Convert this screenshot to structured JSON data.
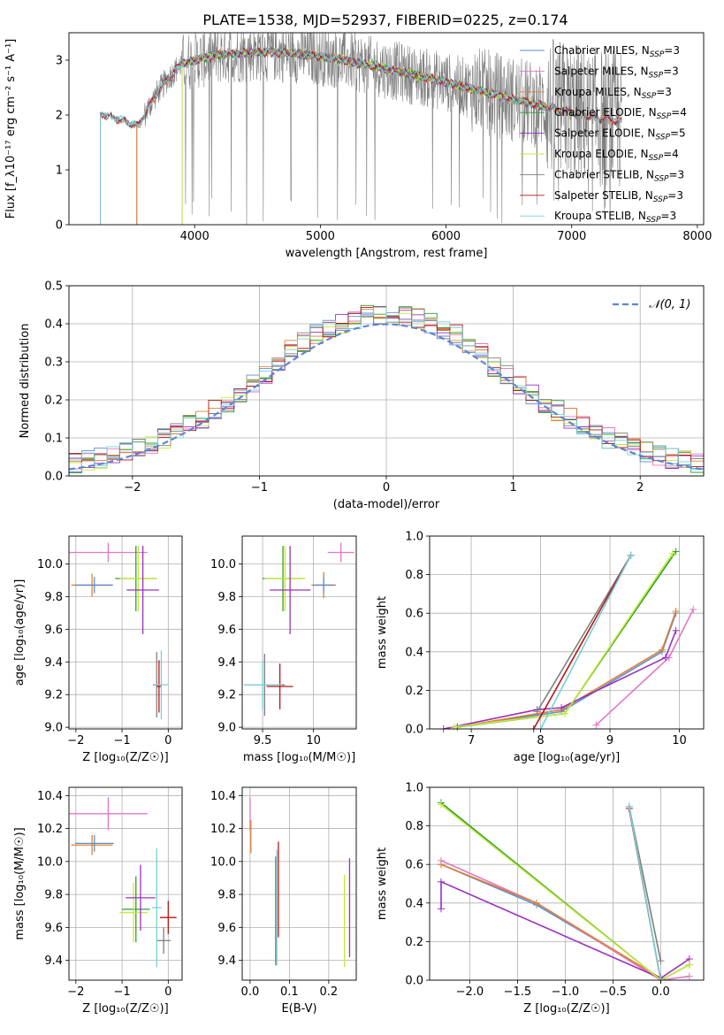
{
  "title": "PLATE=1538, MJD=52937, FIBERID=0225, z=0.174",
  "colors": {
    "Chabrier MILES": "#5a8fd6",
    "Salpeter MILES": "#e377c2",
    "Kroupa MILES": "#dd8033",
    "Chabrier ELODIE": "#2ca02c",
    "Salpeter ELODIE": "#9b30c0",
    "Kroupa ELODIE": "#c6e83a",
    "Chabrier STELIB": "#7f7f7f",
    "Salpeter STELIB": "#b81414",
    "Kroupa STELIB": "#74d0d8"
  },
  "chart_data": [
    {
      "id": "spectrum",
      "type": "line",
      "xlabel": "wavelength [Angstrom, rest frame]",
      "ylabel": "Flux [f_λ10⁻¹⁷ erg cm⁻² s⁻¹ A⁻¹]",
      "xlim": [
        3000,
        8050
      ],
      "ylim": [
        0,
        3.5
      ],
      "xticks": [
        4000,
        5000,
        6000,
        7000,
        8000
      ],
      "yticks": [
        0,
        1,
        2,
        3
      ],
      "grid": false,
      "legend_position": "upper-right",
      "data_range": [
        3250,
        7400
      ],
      "data_series": "Chabrier STELIB",
      "continuum": {
        "x": [
          3250,
          3400,
          3550,
          3700,
          3800,
          3900,
          4000,
          4200,
          4500,
          4800,
          5000,
          5200,
          5500,
          5800,
          6000,
          6300,
          6600,
          6800,
          7000,
          7200,
          7400
        ],
        "y": [
          2.02,
          1.92,
          1.8,
          2.4,
          2.7,
          2.95,
          3.0,
          3.1,
          3.15,
          3.12,
          3.07,
          3.0,
          2.85,
          2.7,
          2.6,
          2.42,
          2.25,
          2.15,
          2.05,
          1.95,
          1.88
        ]
      },
      "series": [
        {
          "name": "Chabrier MILES",
          "nssp": "3",
          "start": 3540,
          "end": 7400
        },
        {
          "name": "Salpeter MILES",
          "nssp": "3",
          "start": 3540,
          "end": 7400
        },
        {
          "name": "Kroupa MILES",
          "nssp": "3",
          "start": 3540,
          "end": 7400
        },
        {
          "name": "Chabrier ELODIE",
          "nssp": "4",
          "start": 3900,
          "end": 6800
        },
        {
          "name": "Salpeter ELODIE",
          "nssp": "5",
          "start": 3900,
          "end": 6800
        },
        {
          "name": "Kroupa ELODIE",
          "nssp": "4",
          "start": 3900,
          "end": 6800
        },
        {
          "name": "Chabrier STELIB",
          "nssp": "3",
          "start": 3250,
          "end": 7400
        },
        {
          "name": "Salpeter STELIB",
          "nssp": "3",
          "start": 3250,
          "end": 7400
        },
        {
          "name": "Kroupa STELIB",
          "nssp": "3",
          "start": 3250,
          "end": 7400
        }
      ]
    },
    {
      "id": "residuals",
      "type": "histogram",
      "xlabel": "(data-model)/error",
      "ylabel": "Normed distribution",
      "xlim": [
        -2.5,
        2.5
      ],
      "ylim": [
        0,
        0.5
      ],
      "xticks": [
        -2,
        -1,
        0,
        1,
        2
      ],
      "yticks": [
        0.0,
        0.1,
        0.2,
        0.3,
        0.4,
        0.5
      ],
      "grid": true,
      "legend_position": "upper-right",
      "reference_label": "𝒩(0, 1)",
      "bin_width": 0.1
    },
    {
      "id": "age_vs_Z",
      "type": "errorbar",
      "xlabel": "Z [log₁₀(Z/Z☉)]",
      "ylabel": "age  [log₁₀(age/yr)]",
      "xlim": [
        -2.15,
        0.3
      ],
      "ylim": [
        8.99,
        10.17
      ],
      "xticks": [
        -2,
        -1,
        0
      ],
      "yticks": [
        9.0,
        9.2,
        9.4,
        9.6,
        9.8,
        10.0
      ],
      "grid": true,
      "points": [
        {
          "series": "Salpeter MILES",
          "x": -1.3,
          "xerr": 0.85,
          "y": 10.07,
          "yerr": 0.06
        },
        {
          "series": "Kroupa MILES",
          "x": -1.65,
          "xerr": 0.45,
          "y": 9.87,
          "yerr": 0.07
        },
        {
          "series": "Chabrier MILES",
          "x": -1.6,
          "xerr": 0.4,
          "y": 9.87,
          "yerr": 0.05
        },
        {
          "series": "Chabrier ELODIE",
          "x": -0.7,
          "xerr": 0.45,
          "y": 9.91,
          "yerr": 0.2
        },
        {
          "series": "Kroupa ELODIE",
          "x": -0.65,
          "xerr": 0.4,
          "y": 9.91,
          "yerr": 0.2
        },
        {
          "series": "Salpeter ELODIE",
          "x": -0.55,
          "xerr": 0.35,
          "y": 9.84,
          "yerr": 0.27
        },
        {
          "series": "Chabrier STELIB",
          "x": -0.25,
          "xerr": 0.08,
          "y": 9.26,
          "yerr": 0.2
        },
        {
          "series": "Salpeter STELIB",
          "x": -0.2,
          "xerr": 0.05,
          "y": 9.25,
          "yerr": 0.16
        },
        {
          "series": "Kroupa STELIB",
          "x": -0.15,
          "xerr": 0.15,
          "y": 9.26,
          "yerr": 0.21
        }
      ]
    },
    {
      "id": "age_vs_mass",
      "type": "errorbar",
      "xlabel": "mass [log₁₀(M/M☉)]",
      "ylabel": "",
      "xlim": [
        9.3,
        10.42
      ],
      "ylim": [
        8.99,
        10.17
      ],
      "xticks": [
        9.5,
        10.0
      ],
      "yticks": [
        9.0,
        9.2,
        9.4,
        9.6,
        9.8,
        10.0
      ],
      "grid": true,
      "points": [
        {
          "series": "Salpeter MILES",
          "x": 10.27,
          "xerr": 0.13,
          "y": 10.07,
          "yerr": 0.06
        },
        {
          "series": "Kroupa MILES",
          "x": 10.1,
          "xerr": 0.12,
          "y": 9.87,
          "yerr": 0.08
        },
        {
          "series": "Chabrier MILES",
          "x": 10.1,
          "xerr": 0.1,
          "y": 9.87,
          "yerr": 0.05
        },
        {
          "series": "Chabrier ELODIE",
          "x": 9.7,
          "xerr": 0.2,
          "y": 9.91,
          "yerr": 0.2
        },
        {
          "series": "Kroupa ELODIE",
          "x": 9.72,
          "xerr": 0.2,
          "y": 9.91,
          "yerr": 0.2
        },
        {
          "series": "Salpeter ELODIE",
          "x": 9.77,
          "xerr": 0.2,
          "y": 9.84,
          "yerr": 0.27
        },
        {
          "series": "Chabrier STELIB",
          "x": 9.52,
          "xerr": 0.2,
          "y": 9.26,
          "yerr": 0.19
        },
        {
          "series": "Salpeter STELIB",
          "x": 9.67,
          "xerr": 0.13,
          "y": 9.25,
          "yerr": 0.14
        },
        {
          "series": "Kroupa STELIB",
          "x": 9.5,
          "xerr": 0.18,
          "y": 9.26,
          "yerr": 0.15
        }
      ]
    },
    {
      "id": "weight_vs_age",
      "type": "line",
      "xlabel": "age  [log₁₀(age/yr)]",
      "ylabel": "mass weight",
      "xlim": [
        6.4,
        10.35
      ],
      "ylim": [
        0,
        1.0
      ],
      "xticks": [
        7,
        8,
        9,
        10
      ],
      "yticks": [
        0.0,
        0.2,
        0.4,
        0.6,
        0.8,
        1.0
      ],
      "grid": true,
      "series": [
        {
          "name": "Chabrier MILES",
          "x": [
            6.8,
            8.3,
            9.75,
            9.95
          ],
          "y": [
            0.01,
            0.09,
            0.4,
            0.6
          ]
        },
        {
          "name": "Salpeter MILES",
          "x": [
            8.8,
            9.85,
            10.2
          ],
          "y": [
            0.02,
            0.37,
            0.62
          ]
        },
        {
          "name": "Kroupa MILES",
          "x": [
            6.8,
            8.3,
            9.75,
            9.95
          ],
          "y": [
            0.01,
            0.1,
            0.41,
            0.61
          ]
        },
        {
          "name": "Chabrier ELODIE",
          "x": [
            6.8,
            8.35,
            9.95
          ],
          "y": [
            0.01,
            0.08,
            0.92
          ]
        },
        {
          "name": "Salpeter ELODIE",
          "x": [
            6.6,
            7.95,
            8.3,
            9.8,
            9.95
          ],
          "y": [
            0.0,
            0.1,
            0.11,
            0.37,
            0.51
          ]
        },
        {
          "name": "Kroupa ELODIE",
          "x": [
            6.75,
            8.35,
            9.9
          ],
          "y": [
            0.01,
            0.08,
            0.91
          ]
        },
        {
          "name": "Chabrier STELIB",
          "x": [
            7.95,
            9.3
          ],
          "y": [
            0.09,
            0.9
          ]
        },
        {
          "name": "Salpeter STELIB",
          "x": [
            7.9,
            9.3
          ],
          "y": [
            0.0,
            0.9
          ]
        },
        {
          "name": "Kroupa STELIB",
          "x": [
            8.0,
            9.3
          ],
          "y": [
            0.0,
            0.9
          ]
        }
      ]
    },
    {
      "id": "mass_vs_Z",
      "type": "errorbar",
      "xlabel": "Z [log₁₀(Z/Z☉)]",
      "ylabel": "mass [log₁₀(M/M☉)]",
      "xlim": [
        -2.15,
        0.3
      ],
      "ylim": [
        9.28,
        10.45
      ],
      "xticks": [
        -2,
        -1,
        0
      ],
      "yticks": [
        9.4,
        9.6,
        9.8,
        10.0,
        10.2,
        10.4
      ],
      "grid": true,
      "points": [
        {
          "series": "Salpeter MILES",
          "x": -1.3,
          "xerr": 0.85,
          "y": 10.29,
          "yerr": 0.1
        },
        {
          "series": "Kroupa MILES",
          "x": -1.65,
          "xerr": 0.45,
          "y": 10.1,
          "yerr": 0.06
        },
        {
          "series": "Chabrier MILES",
          "x": -1.6,
          "xerr": 0.42,
          "y": 10.11,
          "yerr": 0.05
        },
        {
          "series": "Chabrier ELODIE",
          "x": -0.7,
          "xerr": 0.3,
          "y": 9.71,
          "yerr": 0.2
        },
        {
          "series": "Kroupa ELODIE",
          "x": -0.75,
          "xerr": 0.3,
          "y": 9.69,
          "yerr": 0.18
        },
        {
          "series": "Salpeter ELODIE",
          "x": -0.6,
          "xerr": 0.32,
          "y": 9.78,
          "yerr": 0.2
        },
        {
          "series": "Chabrier STELIB",
          "x": -0.1,
          "xerr": 0.15,
          "y": 9.52,
          "yerr": 0.08
        },
        {
          "series": "Salpeter STELIB",
          "x": 0.0,
          "xerr": 0.18,
          "y": 9.66,
          "yerr": 0.1
        },
        {
          "series": "Kroupa STELIB",
          "x": -0.25,
          "xerr": 0.1,
          "y": 9.72,
          "yerr": 0.36
        }
      ]
    },
    {
      "id": "mass_vs_ebv",
      "type": "errorbar",
      "xlabel": "E(B-V)",
      "ylabel": "",
      "xlim": [
        -0.02,
        0.27
      ],
      "ylim": [
        9.28,
        10.45
      ],
      "xticks": [
        0.0,
        0.1,
        0.2
      ],
      "yticks": [
        9.4,
        9.6,
        9.8,
        10.0,
        10.2,
        10.4
      ],
      "grid": true,
      "points": [
        {
          "series": "Salpeter MILES",
          "x": 0.0,
          "xerr": 0.0,
          "y": 10.29,
          "yerr": 0.1
        },
        {
          "series": "Kroupa MILES",
          "x": 0.002,
          "xerr": 0.0,
          "y": 10.15,
          "yerr": 0.1
        },
        {
          "series": "Chabrier STELIB",
          "x": 0.065,
          "xerr": 0.0,
          "y": 9.7,
          "yerr": 0.33
        },
        {
          "series": "Salpeter STELIB",
          "x": 0.072,
          "xerr": 0.0,
          "y": 9.83,
          "yerr": 0.29
        },
        {
          "series": "Kroupa STELIB",
          "x": 0.068,
          "xerr": 0.0,
          "y": 9.72,
          "yerr": 0.35
        },
        {
          "series": "Kroupa ELODIE",
          "x": 0.24,
          "xerr": 0.0,
          "y": 9.64,
          "yerr": 0.28
        },
        {
          "series": "Salpeter ELODIE",
          "x": 0.253,
          "xerr": 0.0,
          "y": 9.72,
          "yerr": 0.3
        }
      ]
    },
    {
      "id": "weight_vs_Z",
      "type": "line",
      "xlabel": "Z [log₁₀(Z/Z☉)]",
      "ylabel": "mass weight",
      "xlim": [
        -2.42,
        0.45
      ],
      "ylim": [
        0,
        1.0
      ],
      "xticks": [
        -2.0,
        -1.5,
        -1.0,
        -0.5,
        0.0
      ],
      "yticks": [
        0.0,
        0.2,
        0.4,
        0.6,
        0.8,
        1.0
      ],
      "grid": true,
      "series": [
        {
          "name": "Chabrier MILES",
          "x": [
            -2.3,
            -1.3,
            0.0
          ],
          "y": [
            0.6,
            0.39,
            0.01
          ]
        },
        {
          "name": "Salpeter MILES",
          "x": [
            -2.3,
            -1.3,
            0.0,
            0.3
          ],
          "y": [
            0.62,
            0.4,
            0.0,
            0.02
          ]
        },
        {
          "name": "Kroupa MILES",
          "x": [
            -2.3,
            -1.3,
            0.0
          ],
          "y": [
            0.6,
            0.4,
            0.01
          ]
        },
        {
          "name": "Chabrier ELODIE",
          "x": [
            -2.3,
            0.0,
            0.3
          ],
          "y": [
            0.92,
            0.0,
            0.08
          ]
        },
        {
          "name": "Salpeter ELODIE",
          "x": [
            -2.3,
            -2.3,
            0.0,
            0.3
          ],
          "y": [
            0.37,
            0.51,
            0.01,
            0.11
          ]
        },
        {
          "name": "Kroupa ELODIE",
          "x": [
            -2.3,
            0.0,
            0.3
          ],
          "y": [
            0.91,
            0.0,
            0.08
          ]
        },
        {
          "name": "Chabrier STELIB",
          "x": [
            -0.33,
            0.0
          ],
          "y": [
            0.9,
            0.1
          ]
        },
        {
          "name": "Salpeter STELIB",
          "x": [
            -0.33,
            0.0
          ],
          "y": [
            0.89,
            0.0
          ]
        },
        {
          "name": "Kroupa STELIB",
          "x": [
            -0.33,
            0.0
          ],
          "y": [
            0.9,
            0.0
          ]
        }
      ]
    }
  ]
}
